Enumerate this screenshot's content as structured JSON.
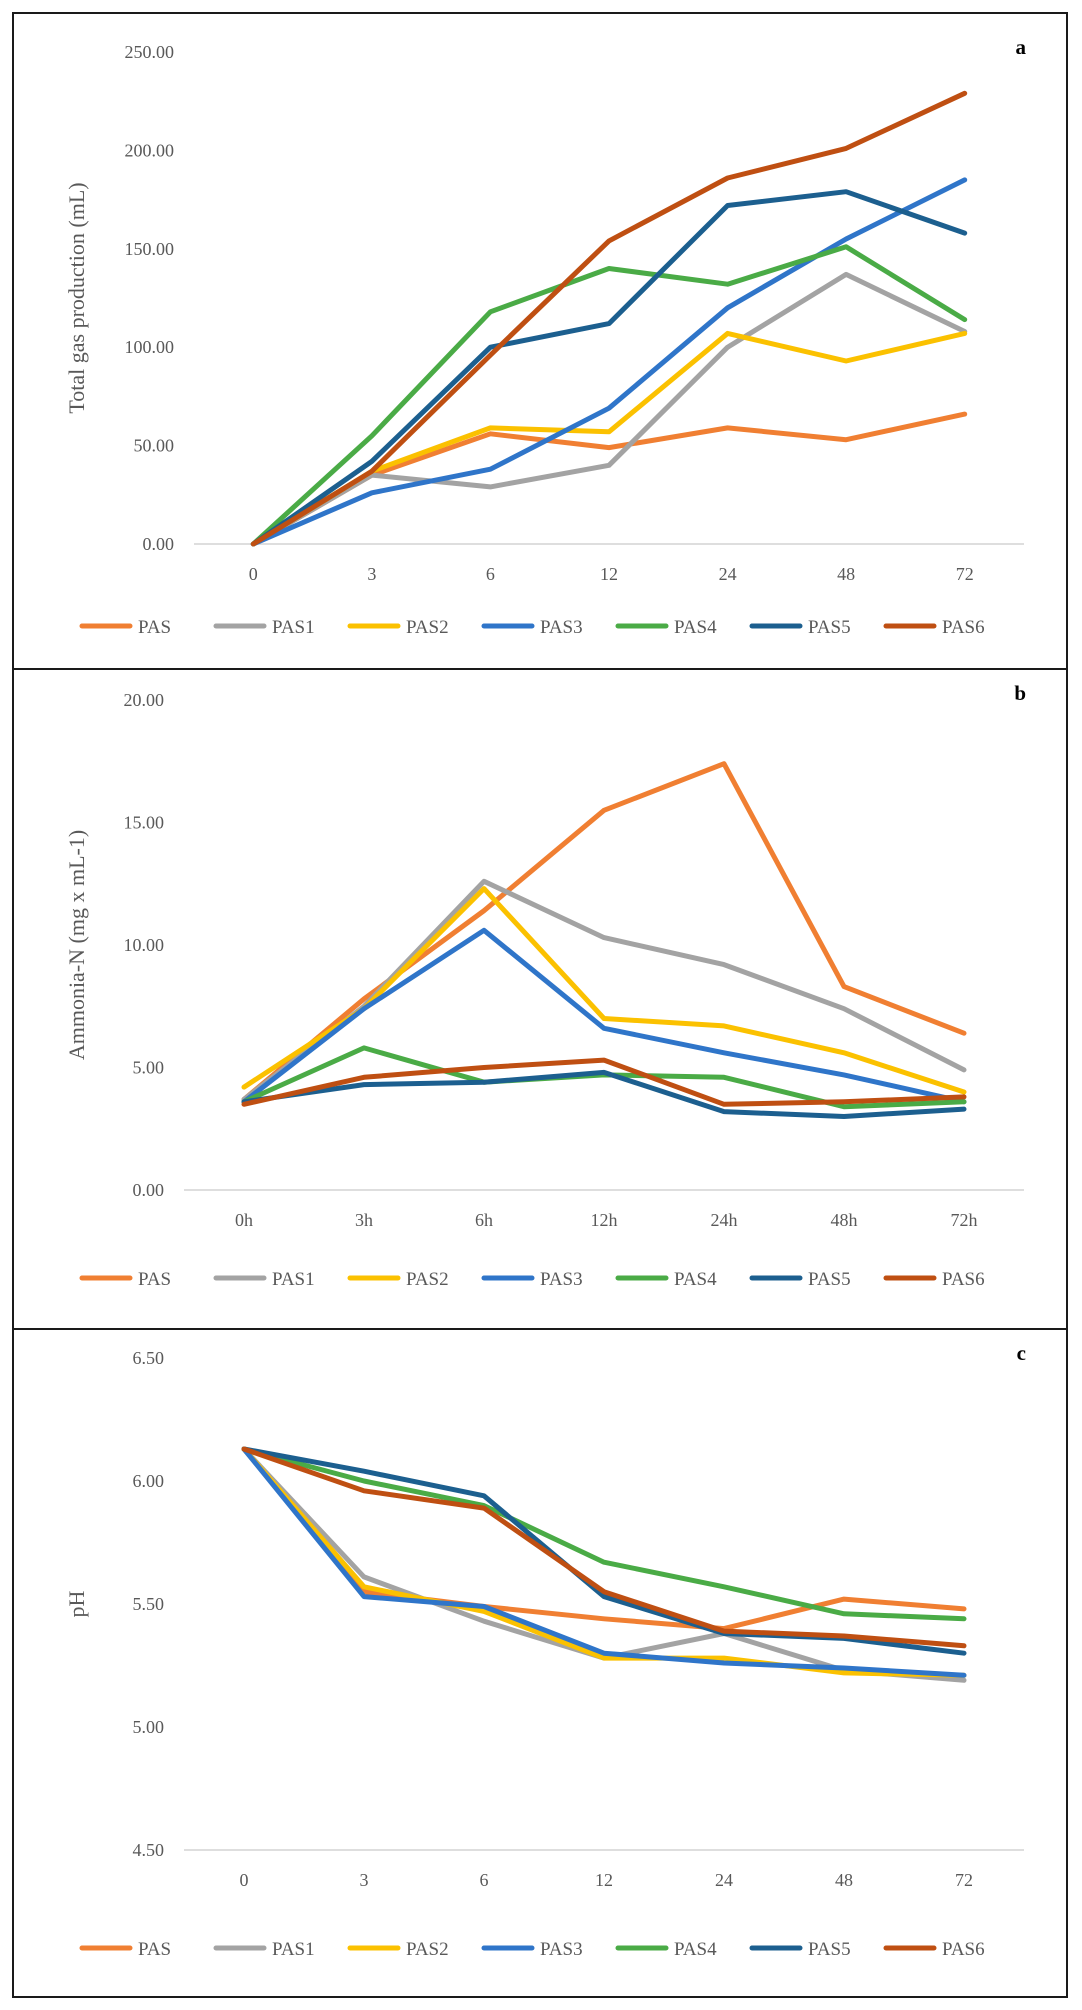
{
  "colors": {
    "PAS": "#f07f32",
    "PAS1": "#a3a3a3",
    "PAS2": "#fbc100",
    "PAS3": "#2f75c9",
    "PAS4": "#4aab46",
    "PAS5": "#1c5f8f",
    "PAS6": "#bf4f12"
  },
  "chart_data": [
    {
      "panel_label": "a",
      "type": "line",
      "title": "",
      "xlabel": "",
      "ylabel": "Total gas production (mL)",
      "categories": [
        "0",
        "3",
        "6",
        "12",
        "24",
        "48",
        "72"
      ],
      "yticks": [
        "0.00",
        "50.00",
        "100.00",
        "150.00",
        "200.00",
        "250.00"
      ],
      "ylim": [
        0,
        250
      ],
      "grid": false,
      "legend": "bottom",
      "series": [
        {
          "name": "PAS",
          "values": [
            0,
            35,
            56,
            49,
            59,
            53,
            66
          ]
        },
        {
          "name": "PAS1",
          "values": [
            0,
            35,
            29,
            40,
            100,
            137,
            108
          ]
        },
        {
          "name": "PAS2",
          "values": [
            0,
            37,
            59,
            57,
            107,
            93,
            107
          ]
        },
        {
          "name": "PAS3",
          "values": [
            0,
            26,
            38,
            69,
            120,
            155,
            185
          ]
        },
        {
          "name": "PAS4",
          "values": [
            0,
            55,
            118,
            140,
            132,
            151,
            114
          ]
        },
        {
          "name": "PAS5",
          "values": [
            0,
            42,
            100,
            112,
            172,
            179,
            158
          ]
        },
        {
          "name": "PAS6",
          "values": [
            0,
            37,
            96,
            154,
            186,
            201,
            229
          ]
        }
      ]
    },
    {
      "panel_label": "b",
      "type": "line",
      "title": "",
      "xlabel": "",
      "ylabel": "Ammonia-N (mg x mL-1)",
      "categories": [
        "0h",
        "3h",
        "6h",
        "12h",
        "24h",
        "48h",
        "72h"
      ],
      "yticks": [
        "0.00",
        "5.00",
        "10.00",
        "15.00",
        "20.00"
      ],
      "ylim": [
        0,
        20
      ],
      "grid": false,
      "legend": "bottom",
      "series": [
        {
          "name": "PAS",
          "values": [
            3.7,
            7.8,
            11.4,
            15.5,
            17.4,
            8.3,
            6.4
          ]
        },
        {
          "name": "PAS1",
          "values": [
            3.7,
            7.5,
            12.6,
            10.3,
            9.2,
            7.4,
            4.9
          ]
        },
        {
          "name": "PAS2",
          "values": [
            4.2,
            7.4,
            12.3,
            7.0,
            6.7,
            5.6,
            4.0
          ]
        },
        {
          "name": "PAS3",
          "values": [
            3.6,
            7.4,
            10.6,
            6.6,
            5.6,
            4.7,
            3.6
          ]
        },
        {
          "name": "PAS4",
          "values": [
            3.6,
            5.8,
            4.4,
            4.7,
            4.6,
            3.4,
            3.6
          ]
        },
        {
          "name": "PAS5",
          "values": [
            3.6,
            4.3,
            4.4,
            4.8,
            3.2,
            3.0,
            3.3
          ]
        },
        {
          "name": "PAS6",
          "values": [
            3.5,
            4.6,
            5.0,
            5.3,
            3.5,
            3.6,
            3.8
          ]
        }
      ]
    },
    {
      "panel_label": "c",
      "type": "line",
      "title": "",
      "xlabel": "",
      "ylabel": "pH",
      "categories": [
        "0",
        "3",
        "6",
        "12",
        "24",
        "48",
        "72"
      ],
      "yticks": [
        "4.50",
        "5.00",
        "5.50",
        "6.00",
        "6.50"
      ],
      "ylim": [
        4.5,
        6.5
      ],
      "grid": false,
      "legend": "bottom",
      "series": [
        {
          "name": "PAS",
          "values": [
            6.13,
            5.55,
            5.49,
            5.44,
            5.4,
            5.52,
            5.48
          ]
        },
        {
          "name": "PAS1",
          "values": [
            6.13,
            5.61,
            5.43,
            5.28,
            5.38,
            5.23,
            5.19
          ]
        },
        {
          "name": "PAS2",
          "values": [
            6.13,
            5.57,
            5.47,
            5.28,
            5.28,
            5.22,
            5.21
          ]
        },
        {
          "name": "PAS3",
          "values": [
            6.13,
            5.53,
            5.49,
            5.3,
            5.26,
            5.24,
            5.21
          ]
        },
        {
          "name": "PAS4",
          "values": [
            6.13,
            6.0,
            5.9,
            5.67,
            5.57,
            5.46,
            5.44
          ]
        },
        {
          "name": "PAS5",
          "values": [
            6.13,
            6.04,
            5.94,
            5.53,
            5.38,
            5.36,
            5.3
          ]
        },
        {
          "name": "PAS6",
          "values": [
            6.13,
            5.96,
            5.89,
            5.55,
            5.39,
            5.37,
            5.33
          ]
        }
      ]
    }
  ]
}
